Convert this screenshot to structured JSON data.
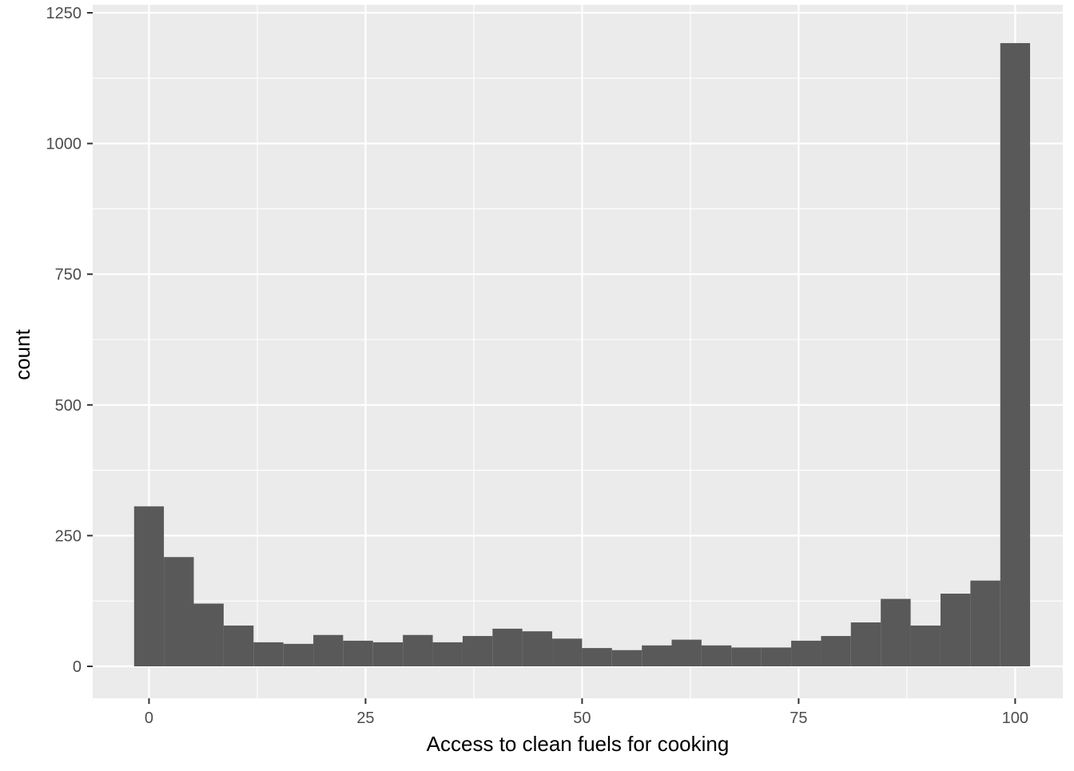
{
  "chart_data": {
    "type": "bar",
    "subtype": "histogram",
    "title": "",
    "xlabel": "Access to clean fuels for cooking",
    "ylabel": "count",
    "xlim": [
      -6.5,
      105.5
    ],
    "ylim": [
      -60,
      1250
    ],
    "x_ticks": [
      0,
      25,
      50,
      75,
      100
    ],
    "x_tick_labels": [
      "0",
      "25",
      "50",
      "75",
      "100"
    ],
    "y_ticks": [
      0,
      250,
      500,
      750,
      1000,
      1250
    ],
    "y_tick_labels": [
      "0",
      "250",
      "500",
      "750",
      "1000",
      "1250"
    ],
    "bin_width": 3.45,
    "bins": [
      {
        "x0": -1.72,
        "x1": 1.72,
        "count": 306
      },
      {
        "x0": 1.72,
        "x1": 5.17,
        "count": 209
      },
      {
        "x0": 5.17,
        "x1": 8.62,
        "count": 120
      },
      {
        "x0": 8.62,
        "x1": 12.07,
        "count": 78
      },
      {
        "x0": 12.07,
        "x1": 15.52,
        "count": 46
      },
      {
        "x0": 15.52,
        "x1": 18.97,
        "count": 43
      },
      {
        "x0": 18.97,
        "x1": 22.41,
        "count": 60
      },
      {
        "x0": 22.41,
        "x1": 25.86,
        "count": 49
      },
      {
        "x0": 25.86,
        "x1": 29.31,
        "count": 46
      },
      {
        "x0": 29.31,
        "x1": 32.76,
        "count": 60
      },
      {
        "x0": 32.76,
        "x1": 36.21,
        "count": 46
      },
      {
        "x0": 36.21,
        "x1": 39.66,
        "count": 58
      },
      {
        "x0": 39.66,
        "x1": 43.1,
        "count": 72
      },
      {
        "x0": 43.1,
        "x1": 46.55,
        "count": 67
      },
      {
        "x0": 46.55,
        "x1": 50.0,
        "count": 53
      },
      {
        "x0": 50.0,
        "x1": 53.45,
        "count": 35
      },
      {
        "x0": 53.45,
        "x1": 56.9,
        "count": 31
      },
      {
        "x0": 56.9,
        "x1": 60.34,
        "count": 40
      },
      {
        "x0": 60.34,
        "x1": 63.79,
        "count": 51
      },
      {
        "x0": 63.79,
        "x1": 67.24,
        "count": 40
      },
      {
        "x0": 67.24,
        "x1": 70.69,
        "count": 36
      },
      {
        "x0": 70.69,
        "x1": 74.14,
        "count": 36
      },
      {
        "x0": 74.14,
        "x1": 77.59,
        "count": 49
      },
      {
        "x0": 77.59,
        "x1": 81.03,
        "count": 58
      },
      {
        "x0": 81.03,
        "x1": 84.48,
        "count": 84
      },
      {
        "x0": 84.48,
        "x1": 87.93,
        "count": 129
      },
      {
        "x0": 87.93,
        "x1": 91.38,
        "count": 78
      },
      {
        "x0": 91.38,
        "x1": 94.83,
        "count": 139
      },
      {
        "x0": 94.83,
        "x1": 98.28,
        "count": 164
      },
      {
        "x0": 98.28,
        "x1": 101.72,
        "count": 1192
      }
    ],
    "grid": true,
    "legend": "none",
    "colors": {
      "panel_background": "#ebebeb",
      "grid_major": "#ffffff",
      "bar_fill": "#595959",
      "tick_text": "#4d4d4d",
      "title_text": "#000000"
    }
  }
}
